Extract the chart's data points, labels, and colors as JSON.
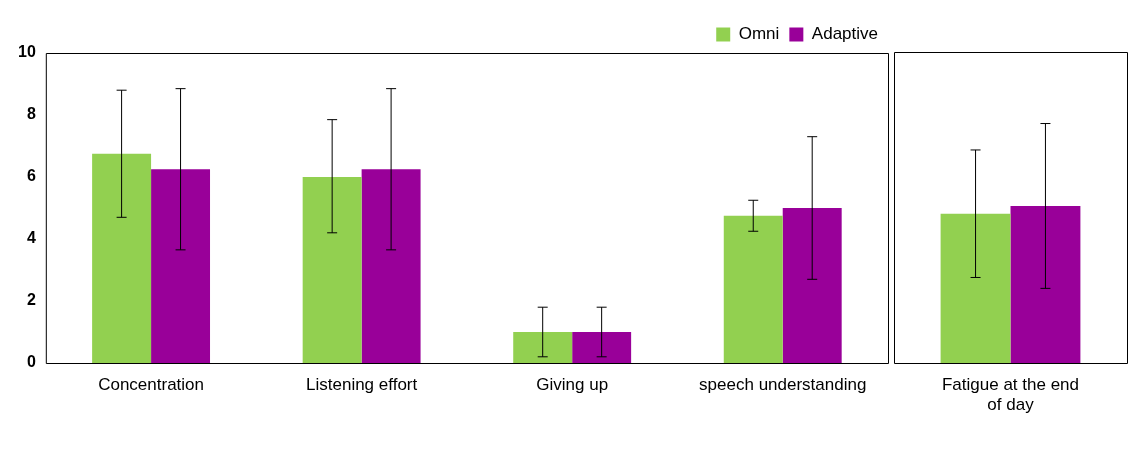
{
  "chart_data": [
    {
      "type": "bar",
      "categories": [
        "Concentration",
        "Listening effort",
        "Giving up",
        "speech understanding"
      ],
      "series": [
        {
          "name": "Omni",
          "color": "#92d050",
          "values": [
            6.75,
            6.0,
            1.0,
            4.75
          ],
          "errors": [
            [
              4.7,
              8.8
            ],
            [
              4.2,
              7.85
            ],
            [
              0.2,
              1.8
            ],
            [
              4.25,
              5.25
            ]
          ]
        },
        {
          "name": "Adaptive",
          "color": "#990099",
          "values": [
            6.25,
            6.25,
            1.0,
            5.0
          ],
          "errors": [
            [
              3.65,
              8.85
            ],
            [
              3.65,
              8.85
            ],
            [
              0.2,
              1.8
            ],
            [
              2.7,
              7.3
            ]
          ]
        }
      ],
      "ylim": [
        0,
        10
      ],
      "yticks": [
        0,
        2,
        4,
        6,
        8,
        10
      ],
      "grid": false,
      "legend": "top right"
    },
    {
      "type": "bar",
      "categories": [
        "Fatigue at the end of day"
      ],
      "series": [
        {
          "color": "#92d050",
          "values": [
            4.8
          ],
          "errors": [
            [
              2.75,
              6.85
            ]
          ]
        },
        {
          "color": "#990099",
          "values": [
            5.05
          ],
          "errors": [
            [
              2.4,
              7.7
            ]
          ]
        }
      ],
      "ylim": [
        0,
        10
      ],
      "yticks": [
        0,
        2,
        4,
        6,
        8,
        10
      ],
      "grid": false,
      "legend": false,
      "tick_labels": "x"
    }
  ]
}
